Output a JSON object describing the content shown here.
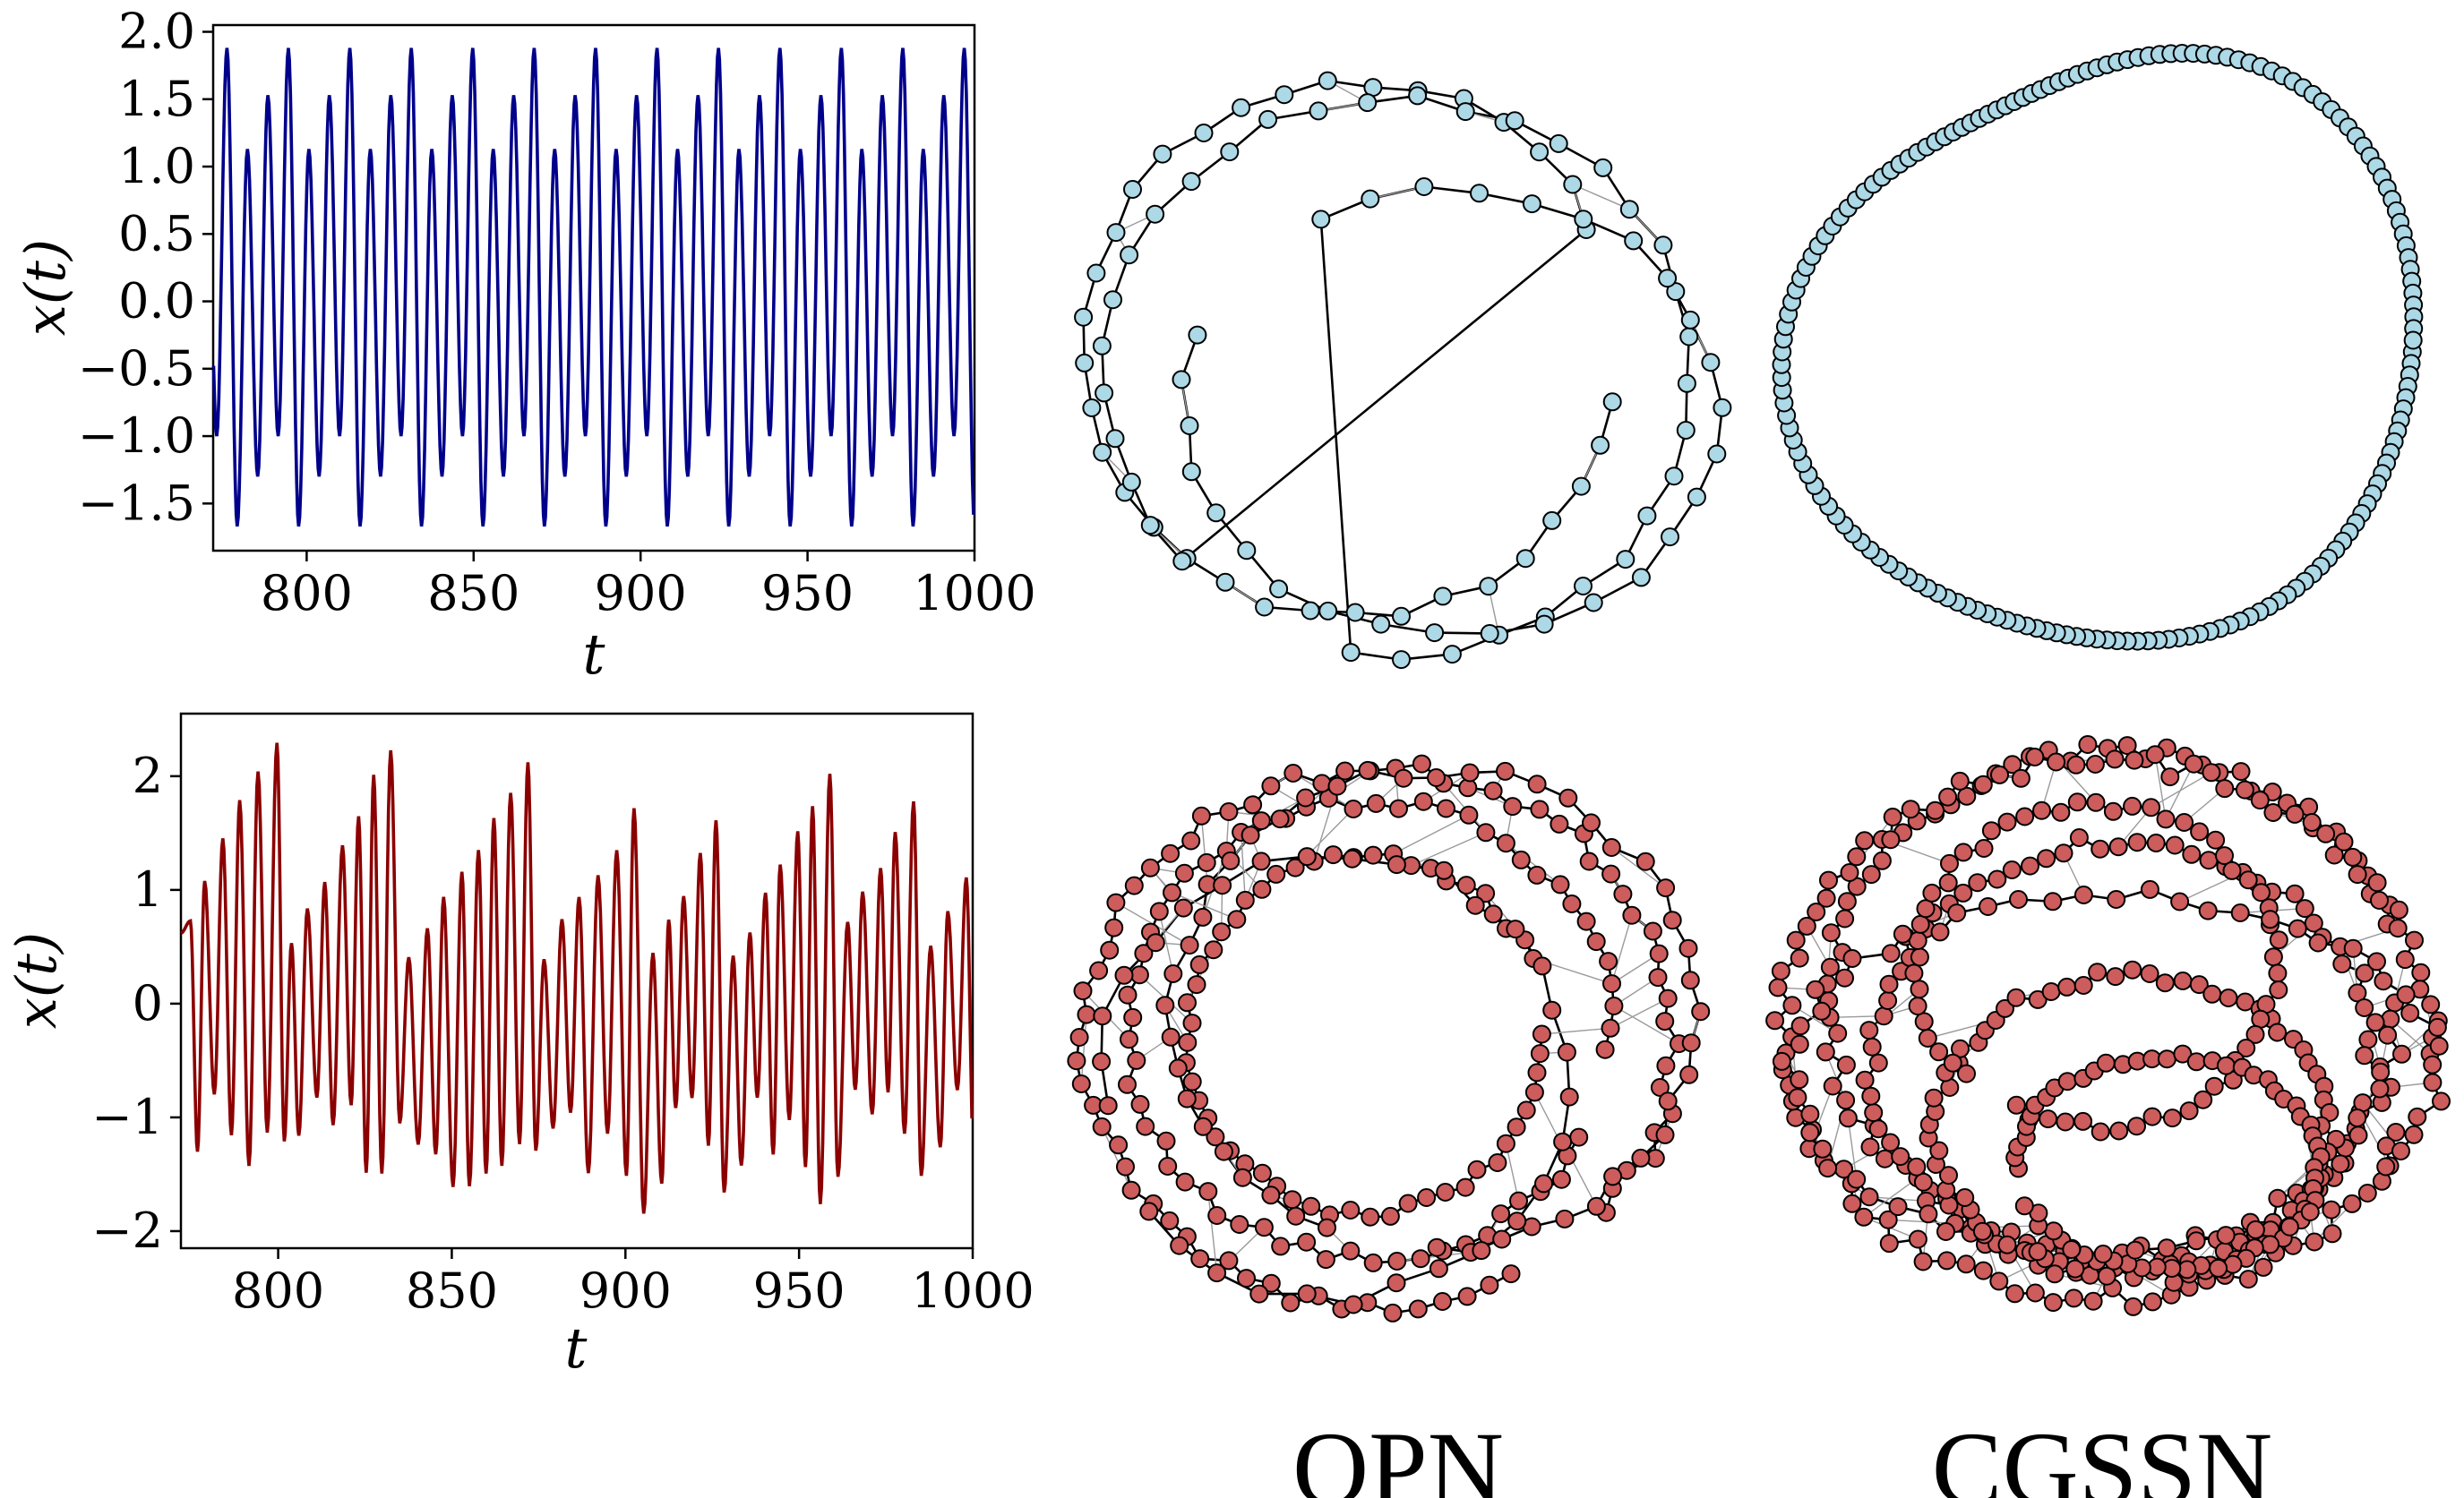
{
  "chart_data": [
    {
      "type": "line",
      "xlabel": "t",
      "ylabel": "x(t)",
      "xlim": [
        772,
        1000
      ],
      "ylim": [
        -1.85,
        2.05
      ],
      "xticks": [
        "800",
        "850",
        "900",
        "950",
        "1000"
      ],
      "yticks": [
        "-1.5",
        "-1.0",
        "-0.5",
        "0.0",
        "0.5",
        "1.0",
        "1.5",
        "2.0"
      ],
      "color": "#00008b",
      "signal": {
        "kind": "periodic",
        "period": 18.4,
        "peaks": [
          1.53,
          1.88,
          1.13
        ],
        "troughs": [
          -1.0,
          -1.67,
          -1.3
        ]
      }
    },
    {
      "type": "line",
      "xlabel": "t",
      "ylabel": "x(t)",
      "xlim": [
        772,
        1000
      ],
      "ylim": [
        -2.15,
        2.55
      ],
      "xticks": [
        "800",
        "850",
        "900",
        "950",
        "1000"
      ],
      "yticks": [
        "-2",
        "-1",
        "0",
        "1",
        "2"
      ],
      "color": "#8b0000",
      "signal": {
        "kind": "chaotic",
        "peak_range": [
          0.4,
          2.32
        ],
        "trough_range": [
          -0.7,
          -1.95
        ]
      }
    },
    {
      "type": "network",
      "name": "OPN",
      "node_color": "#add8e6",
      "nodes": 90,
      "layout": "three interlaced loops"
    },
    {
      "type": "network",
      "name": "CGSSN",
      "node_color": "#add8e6",
      "nodes": 170,
      "layout": "single closed loop"
    },
    {
      "type": "network",
      "name": "OPN",
      "node_color": "#cd5c5c",
      "nodes": 260,
      "layout": "several nested rings"
    },
    {
      "type": "network",
      "name": "CGSSN",
      "node_color": "#cd5c5c",
      "nodes": 520,
      "layout": "dense tangled rings"
    }
  ],
  "labels": {
    "opn": "OPN",
    "cgssn": "CGSSN"
  }
}
